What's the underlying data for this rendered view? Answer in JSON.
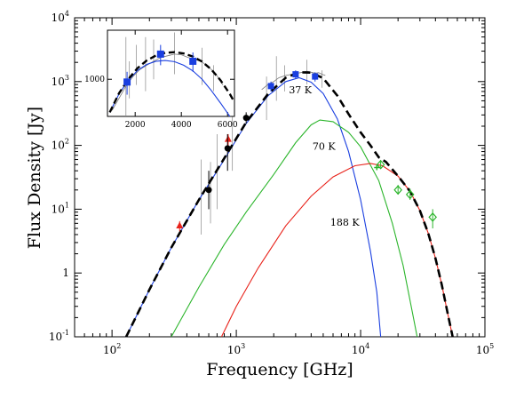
{
  "chart_data": {
    "type": "line",
    "xlabel": "Frequency [GHz]",
    "ylabel": "Flux Density [Jy]",
    "x_scale": "log",
    "y_scale": "log",
    "xlim": [
      50,
      100000
    ],
    "ylim": [
      0.1,
      10000
    ],
    "x_ticks": [
      {
        "base": "10",
        "exp": "2",
        "value": 100
      },
      {
        "base": "10",
        "exp": "3",
        "value": 1000
      },
      {
        "base": "10",
        "exp": "4",
        "value": 10000
      },
      {
        "base": "10",
        "exp": "5",
        "value": 100000
      }
    ],
    "y_ticks": [
      {
        "base": "10",
        "exp": "-1",
        "value": 0.1,
        "text": null
      },
      {
        "base": "1",
        "exp": "",
        "value": 1,
        "text": "1"
      },
      {
        "base": "10",
        "exp": "1",
        "value": 10
      },
      {
        "base": "10",
        "exp": "2",
        "value": 100
      },
      {
        "base": "10",
        "exp": "3",
        "value": 1000
      },
      {
        "base": "10",
        "exp": "4",
        "value": 10000
      }
    ],
    "component_labels": [
      {
        "text": "37 K",
        "x": 2650,
        "y": 650
      },
      {
        "text": "70 K",
        "x": 4100,
        "y": 85
      },
      {
        "text": "188 K",
        "x": 5700,
        "y": 5.5
      }
    ],
    "series": [
      {
        "key": "cold",
        "color": "#1a3fe0",
        "style": "solid",
        "x": [
          130,
          200,
          300,
          500,
          800,
          1200,
          1800,
          2500,
          3200,
          4000,
          5000,
          6500,
          8000,
          10000,
          12000,
          13500,
          14500
        ],
        "y": [
          0.1,
          0.55,
          2.5,
          14,
          60,
          220,
          600,
          1000,
          1150,
          980,
          650,
          260,
          80,
          14,
          2.2,
          0.5,
          0.1
        ]
      },
      {
        "key": "warm",
        "color": "#2bb52b",
        "style": "solid",
        "x": [
          300,
          500,
          800,
          1200,
          2000,
          3000,
          4000,
          4700,
          6000,
          8000,
          10000,
          14000,
          18000,
          22000,
          26000,
          28500
        ],
        "y": [
          0.1,
          0.6,
          2.8,
          9,
          35,
          110,
          210,
          250,
          235,
          160,
          95,
          28,
          6,
          1.3,
          0.25,
          0.1
        ]
      },
      {
        "key": "hot",
        "color": "#e8221a",
        "style": "solid",
        "x": [
          760,
          1000,
          1500,
          2500,
          4000,
          6000,
          9000,
          12000,
          15000,
          20000,
          25000,
          30000,
          35000,
          40000,
          45000,
          50000,
          55000
        ],
        "y": [
          0.1,
          0.3,
          1.2,
          5.5,
          16,
          32,
          48,
          52,
          48,
          33,
          19,
          9.5,
          4.2,
          1.7,
          0.65,
          0.24,
          0.1
        ]
      },
      {
        "key": "total",
        "color": "#000000",
        "style": "dashed",
        "x": [
          130,
          200,
          300,
          500,
          800,
          1200,
          1800,
          2500,
          3200,
          4000,
          5000,
          6500,
          8000,
          10000,
          12000,
          14000,
          16000,
          20000,
          25000,
          30000,
          35000,
          40000,
          45000,
          50000,
          55000
        ],
        "y": [
          0.1,
          0.55,
          2.5,
          14,
          63,
          230,
          640,
          1150,
          1400,
          1380,
          1130,
          600,
          310,
          160,
          100,
          65,
          55,
          33,
          19,
          9.5,
          4.2,
          1.7,
          0.65,
          0.24,
          0.1
        ]
      }
    ],
    "points": [
      {
        "marker": "triangle",
        "color": "#e8221a",
        "x": 350,
        "y": 5.5,
        "err": [
          4.5,
          6.5
        ]
      },
      {
        "marker": "triangle",
        "color": "#e8221a",
        "x": 860,
        "y": 125,
        "err": [
          100,
          150
        ]
      },
      {
        "marker": "circle",
        "color": "#000000",
        "x": 600,
        "y": 20,
        "err": [
          10,
          40
        ]
      },
      {
        "marker": "circle",
        "color": "#000000",
        "x": 850,
        "y": 90,
        "err": [
          40,
          150
        ]
      },
      {
        "marker": "circle",
        "color": "#000000",
        "x": 1200,
        "y": 270,
        "err": [
          220,
          330
        ]
      },
      {
        "marker": "square",
        "color": "#1a3fe0",
        "x": 1900,
        "y": 850,
        "err": [
          700,
          1000
        ]
      },
      {
        "marker": "square",
        "color": "#1a3fe0",
        "x": 3000,
        "y": 1300,
        "err": [
          1100,
          1500
        ]
      },
      {
        "marker": "square",
        "color": "#1a3fe0",
        "x": 4300,
        "y": 1200,
        "err": [
          1000,
          1400
        ]
      },
      {
        "marker": "diamond",
        "color": "#2bb52b",
        "x": 14500,
        "y": 50,
        "err": [
          45,
          56
        ]
      },
      {
        "marker": "diamond",
        "color": "#2bb52b",
        "x": 20000,
        "y": 20,
        "err": [
          17,
          24
        ]
      },
      {
        "marker": "diamond",
        "color": "#2bb52b",
        "x": 25000,
        "y": 17,
        "err": [
          14,
          21
        ]
      },
      {
        "marker": "diamond",
        "color": "#2bb52b",
        "x": 38000,
        "y": 7.5,
        "err": [
          5,
          10
        ]
      },
      {
        "marker": "plus",
        "color": "#2bb52b",
        "x": 13500,
        "y": 45,
        "err": null
      }
    ],
    "spectrum_lines": [
      {
        "x": 520,
        "y": [
          4,
          60
        ]
      },
      {
        "x": 620,
        "y": [
          6,
          55
        ]
      },
      {
        "x": 700,
        "y": [
          10,
          150
        ]
      },
      {
        "x": 930,
        "y": [
          40,
          700
        ]
      },
      {
        "x": 1750,
        "y": [
          250,
          1200
        ]
      },
      {
        "x": 2100,
        "y": [
          500,
          2500
        ]
      },
      {
        "x": 2450,
        "y": [
          700,
          1800
        ]
      },
      {
        "x": 3700,
        "y": [
          900,
          2200
        ]
      },
      {
        "x": 4900,
        "y": [
          800,
          1500
        ]
      }
    ],
    "spectrum_trace": {
      "x": [
        1600,
        1800,
        2000,
        2200,
        2500,
        2800,
        3100,
        3400,
        3700,
        4000,
        4300,
        4600,
        4900,
        5200
      ],
      "y": [
        750,
        900,
        1000,
        1150,
        1250,
        1300,
        1350,
        1400,
        1450,
        1400,
        1350,
        1380,
        1300,
        1250
      ]
    },
    "inset": {
      "x_scale": "linear",
      "y_scale": "log",
      "xlim": [
        800,
        6300
      ],
      "ylim": [
        500,
        2500
      ],
      "x_ticks": [
        2000,
        4000,
        6000
      ],
      "y_ticks": [
        1000
      ],
      "spectrum_lines": [
        {
          "x": 1600,
          "y": [
            500,
            2200
          ]
        },
        {
          "x": 1750,
          "y": [
            700,
            1400
          ]
        },
        {
          "x": 2050,
          "y": [
            900,
            1900
          ]
        },
        {
          "x": 2450,
          "y": [
            800,
            2200
          ]
        },
        {
          "x": 2800,
          "y": [
            1000,
            2100
          ]
        },
        {
          "x": 3700,
          "y": [
            1100,
            2400
          ]
        },
        {
          "x": 4900,
          "y": [
            900,
            1800
          ]
        },
        {
          "x": 5400,
          "y": [
            800,
            1300
          ]
        }
      ],
      "spectrum_trace": {
        "x": [
          1000,
          1300,
          1600,
          1900,
          2200,
          2500,
          2800,
          3100,
          3400,
          3700,
          4000,
          4300,
          4600,
          4900,
          5200,
          5500,
          5800
        ],
        "y": [
          560,
          700,
          880,
          1050,
          1200,
          1300,
          1400,
          1500,
          1550,
          1600,
          1580,
          1500,
          1450,
          1380,
          1250,
          1100,
          900
        ]
      },
      "blue_curve": {
        "x": [
          900,
          1300,
          1700,
          2100,
          2500,
          2900,
          3300,
          3700,
          4100,
          4500,
          4900,
          5300,
          5700,
          6100
        ],
        "y": [
          540,
          760,
          980,
          1180,
          1320,
          1400,
          1420,
          1390,
          1300,
          1170,
          1000,
          810,
          640,
          500
        ]
      },
      "black_curve": {
        "x": [
          900,
          1300,
          1700,
          2100,
          2500,
          2900,
          3300,
          3700,
          4100,
          4500,
          4900,
          5300,
          5700,
          6100,
          6300
        ],
        "y": [
          540,
          770,
          1000,
          1230,
          1420,
          1560,
          1640,
          1660,
          1620,
          1530,
          1390,
          1200,
          980,
          760,
          650
        ]
      },
      "points": [
        {
          "x": 1650,
          "y": 950,
          "err": [
            750,
            1150
          ]
        },
        {
          "x": 3100,
          "y": 1600,
          "err": [
            1300,
            1900
          ]
        },
        {
          "x": 4500,
          "y": 1400,
          "err": [
            1150,
            1650
          ]
        }
      ]
    }
  }
}
